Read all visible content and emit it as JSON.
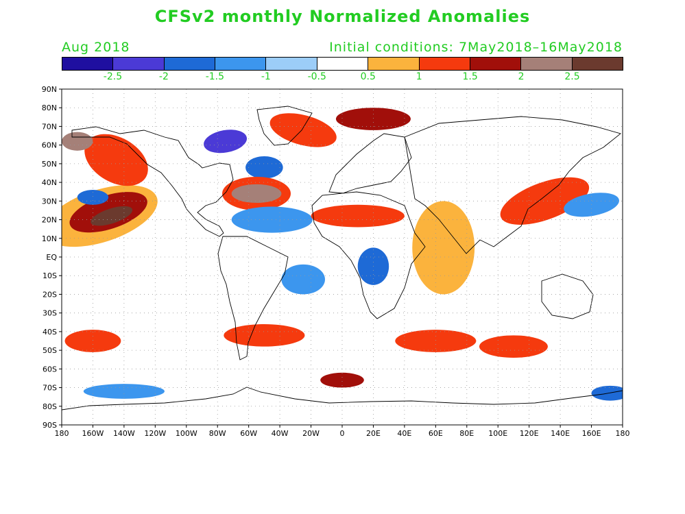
{
  "header": {
    "title": "CFSv2 monthly Normalized Anomalies",
    "period": "Aug 2018",
    "initial_conditions": "Initial conditions: 7May2018–16May2018"
  },
  "colors": {
    "text_green": "#22cc22",
    "ocean": "#ffffff",
    "grid": "#999999"
  },
  "colorbar": {
    "colors": [
      "#1f0fa0",
      "#4b3ad6",
      "#1e6ad6",
      "#3c96ee",
      "#9ccdf8",
      "#ffffff",
      "#fbb33d",
      "#f53a0e",
      "#a10f0a",
      "#a58078",
      "#6b3a2e"
    ],
    "labels": [
      "-2.5",
      "-2",
      "-1.5",
      "-1",
      "-0.5",
      "0.5",
      "1",
      "1.5",
      "2",
      "2.5"
    ]
  },
  "map": {
    "lat_labels": [
      "90N",
      "80N",
      "70N",
      "60N",
      "50N",
      "40N",
      "30N",
      "20N",
      "10N",
      "EQ",
      "10S",
      "20S",
      "30S",
      "40S",
      "50S",
      "60S",
      "70S",
      "80S",
      "90S"
    ],
    "lon_labels": [
      "180",
      "160W",
      "140W",
      "120W",
      "100W",
      "80W",
      "60W",
      "40W",
      "20W",
      "0",
      "20E",
      "40E",
      "60E",
      "80E",
      "100E",
      "120E",
      "140E",
      "160E",
      "180"
    ],
    "anomaly_patches": [
      {
        "lon": -155,
        "lat": 22,
        "rx": 38,
        "ry": 14,
        "level": 6,
        "rot": -18
      },
      {
        "lon": -150,
        "lat": 24,
        "rx": 26,
        "ry": 9,
        "level": 8,
        "rot": -18
      },
      {
        "lon": -148,
        "lat": 22,
        "rx": 14,
        "ry": 4,
        "level": 10,
        "rot": -18
      },
      {
        "lon": -145,
        "lat": 52,
        "rx": 22,
        "ry": 12,
        "level": 7,
        "rot": 30
      },
      {
        "lon": -170,
        "lat": 62,
        "rx": 10,
        "ry": 5,
        "level": 9,
        "rot": 0
      },
      {
        "lon": -160,
        "lat": 32,
        "rx": 10,
        "ry": 4,
        "level": 2,
        "rot": 0
      },
      {
        "lon": -75,
        "lat": 62,
        "rx": 14,
        "ry": 6,
        "level": 1,
        "rot": -10
      },
      {
        "lon": -50,
        "lat": 48,
        "rx": 12,
        "ry": 6,
        "level": 2,
        "rot": 0
      },
      {
        "lon": -55,
        "lat": 34,
        "rx": 22,
        "ry": 9,
        "level": 7,
        "rot": 0
      },
      {
        "lon": -55,
        "lat": 34,
        "rx": 16,
        "ry": 5,
        "level": 9,
        "rot": 0
      },
      {
        "lon": -45,
        "lat": 20,
        "rx": 26,
        "ry": 7,
        "level": 3,
        "rot": 0
      },
      {
        "lon": -25,
        "lat": 68,
        "rx": 22,
        "ry": 8,
        "level": 7,
        "rot": 15
      },
      {
        "lon": 20,
        "lat": 74,
        "rx": 24,
        "ry": 6,
        "level": 8,
        "rot": 0
      },
      {
        "lon": -25,
        "lat": -12,
        "rx": 14,
        "ry": 8,
        "level": 3,
        "rot": 0
      },
      {
        "lon": 20,
        "lat": -5,
        "rx": 10,
        "ry": 10,
        "level": 2,
        "rot": 0
      },
      {
        "lon": 10,
        "lat": 22,
        "rx": 30,
        "ry": 6,
        "level": 7,
        "rot": 0
      },
      {
        "lon": 65,
        "lat": 5,
        "rx": 20,
        "ry": 25,
        "level": 6,
        "rot": 0
      },
      {
        "lon": 130,
        "lat": 30,
        "rx": 30,
        "ry": 10,
        "level": 7,
        "rot": -20
      },
      {
        "lon": 160,
        "lat": 28,
        "rx": 18,
        "ry": 6,
        "level": 3,
        "rot": -10
      },
      {
        "lon": -160,
        "lat": -45,
        "rx": 18,
        "ry": 6,
        "level": 7,
        "rot": 0
      },
      {
        "lon": -50,
        "lat": -42,
        "rx": 26,
        "ry": 6,
        "level": 7,
        "rot": 0
      },
      {
        "lon": 60,
        "lat": -45,
        "rx": 26,
        "ry": 6,
        "level": 7,
        "rot": 0
      },
      {
        "lon": 110,
        "lat": -48,
        "rx": 22,
        "ry": 6,
        "level": 7,
        "rot": 0
      },
      {
        "lon": 0,
        "lat": -66,
        "rx": 14,
        "ry": 4,
        "level": 8,
        "rot": 0
      },
      {
        "lon": -140,
        "lat": -72,
        "rx": 26,
        "ry": 4,
        "level": 3,
        "rot": 0
      },
      {
        "lon": 172,
        "lat": -73,
        "rx": 12,
        "ry": 4,
        "level": 2,
        "rot": 0
      }
    ]
  }
}
